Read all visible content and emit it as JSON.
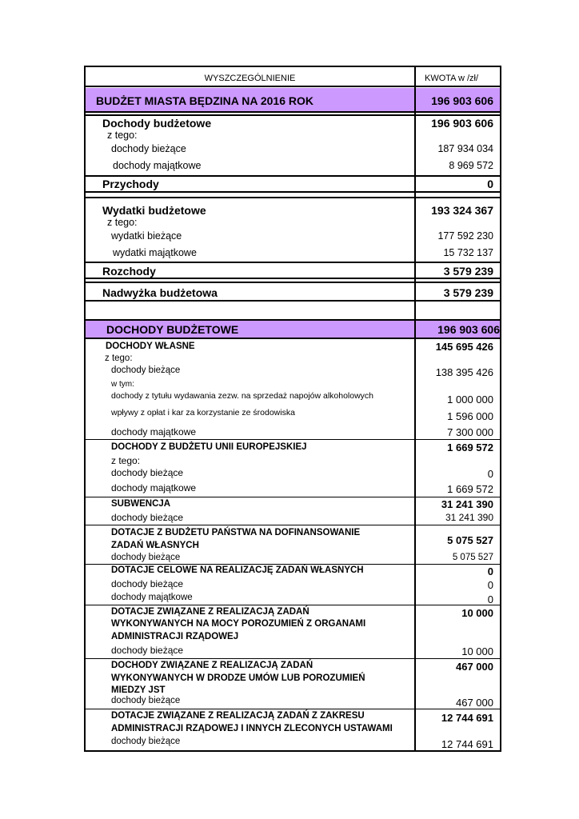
{
  "header": {
    "col1": "WYSZCZEGÓLNIENIE",
    "col2": "KWOTA  w  /zł/"
  },
  "summary": {
    "title": "BUDŻET  MIASTA   BĘDZINA   NA   2016  ROK",
    "title_value": "196 903 606",
    "dochody": "Dochody budżetowe",
    "dochody_value": "196 903 606",
    "dochody_ztego": "z tego:",
    "dochody_biezace": "dochody bieżące",
    "dochody_biezace_value": "187 934 034",
    "dochody_majatkowe": "dochody majątkowe",
    "dochody_majatkowe_value": "8 969 572",
    "przychody": "Przychody",
    "przychody_value": "0",
    "wydatki": "Wydatki  budżetowe",
    "wydatki_value": "193 324 367",
    "wydatki_ztego": "z tego:",
    "wydatki_biezace": "wydatki  bieżące",
    "wydatki_biezace_value": "177 592 230",
    "wydatki_majatkowe": "wydatki majątkowe",
    "wydatki_majatkowe_value": "15 732 137",
    "rozchody": "Rozchody",
    "rozchody_value": "3 579 239",
    "nadwyzka": "Nadwyżka budżetowa",
    "nadwyzka_value": "3 579 239"
  },
  "income": {
    "title": "DOCHODY      BUDŻETOWE",
    "title_value": "196 903 606",
    "wlasne": {
      "title": "DOCHODY  WŁASNE",
      "value": "145 695 426",
      "ztego": "z tego:",
      "biezace": "dochody bieżące",
      "biezace_value": "138 395 426",
      "wtym": "w tym:",
      "alkohol": "dochody z tytułu wydawania zezw. na sprzedaż napojów alkoholowych",
      "alkohol_value": "1 000 000",
      "srodowisko": "wpływy z opłat i kar za korzystanie ze środowiska",
      "srodowisko_value": "1 596 000",
      "majatkowe": "dochody  majątkowe",
      "majatkowe_value": "7 300 000"
    },
    "ue": {
      "title": "DOCHODY Z BUDŻETU UNII  EUROPEJSKIEJ",
      "value": "1 669 572",
      "ztego": "z tego:",
      "biezace": "dochody bieżące",
      "biezace_value": "0",
      "majatkowe": "dochody  majątkowe",
      "majatkowe_value": "1 669 572"
    },
    "subwencja": {
      "title": "SUBWENCJA",
      "value": "31 241 390",
      "biezace": "dochody bieżące",
      "biezace_value": "31 241 390"
    },
    "dofinansowanie": {
      "line1": "DOTACJE Z BUDŻETU PAŃSTWA NA DOFINANSOWANIE",
      "line2": "ZADAŃ WŁASNYCH",
      "value": "5 075 527",
      "biezace": "dochody bieżące",
      "biezace_value": "5 075 527"
    },
    "celowe": {
      "title": "DOTACJE CELOWE NA REALIZACJĘ ZADAŃ WŁASNYCH",
      "value": "0",
      "biezace": "dochody bieżące",
      "biezace_value": "0",
      "majatkowe": "dochody  majątkowe",
      "majatkowe_value": "0"
    },
    "porozumienia": {
      "line1": "DOTACJE ZWIĄZANE Z REALIZACJĄ  ZADAŃ",
      "line2": "WYKONYWANYCH NA MOCY POROZUMIEŃ Z ORGANAMI",
      "line3": "ADMINISTRACJI RZĄDOWEJ",
      "value": "10 000",
      "biezace": "dochody bieżące",
      "biezace_value": "10 000"
    },
    "jst": {
      "line1": "DOCHODY ZWIĄZANE Z  REALIZACJĄ ZADAŃ",
      "line2": "WYKONYWANYCH W DRODZE UMÓW LUB POROZUMIEŃ",
      "line3": "MIEDZY JST",
      "value": "467 000",
      "biezace": "dochody bieżące",
      "biezace_value": "467 000"
    },
    "zlecone": {
      "line1": "DOTACJE ZWIĄZANE Z REALIZACJĄ ZADAŃ Z ZAKRESU",
      "line2": "ADMINISTRACJI RZĄDOWEJ I INNYCH ZLECONYCH USTAWAMI",
      "value": "12 744 691",
      "biezace": "dochody bieżące",
      "biezace_value": "12 744 691"
    }
  },
  "colors": {
    "highlight": "#cc99ff",
    "border": "#000000"
  }
}
